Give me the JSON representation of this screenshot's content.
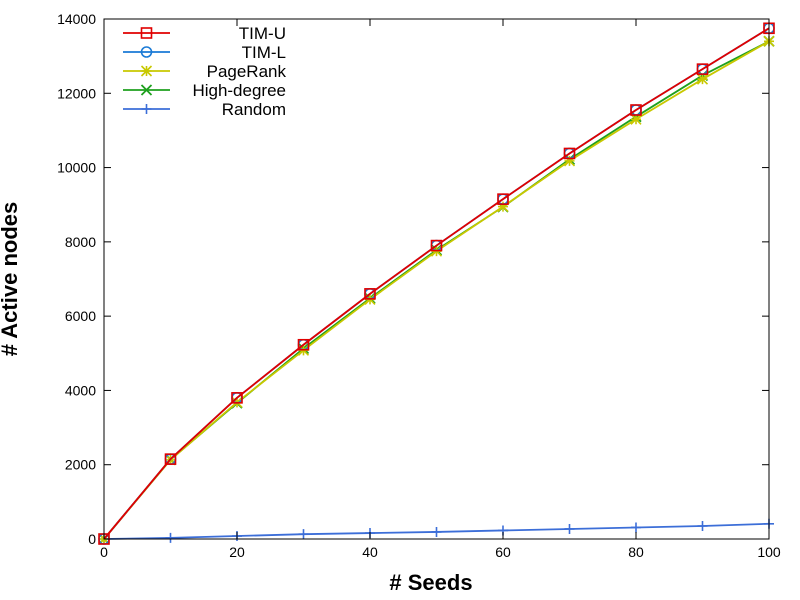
{
  "chart_data": {
    "type": "line",
    "xlabel": "# Seeds",
    "ylabel": "# Active nodes",
    "xlim": [
      0,
      100
    ],
    "ylim": [
      0,
      14000
    ],
    "xticks": [
      0,
      20,
      40,
      60,
      80,
      100
    ],
    "yticks": [
      0,
      2000,
      4000,
      6000,
      8000,
      10000,
      12000,
      14000
    ],
    "grid": false,
    "legend_position": "top-left",
    "x": [
      0,
      10,
      20,
      30,
      40,
      50,
      60,
      70,
      80,
      90,
      100
    ],
    "series": [
      {
        "name": "TIM-U",
        "color": "#e00000",
        "marker": "square",
        "values": [
          0,
          2150,
          3800,
          5230,
          6600,
          7900,
          9150,
          10380,
          11550,
          12650,
          13750
        ]
      },
      {
        "name": "TIM-L",
        "color": "#1a7ad6",
        "marker": "circle",
        "values": [
          0,
          2150,
          3800,
          5230,
          6600,
          7900,
          9150,
          10380,
          11550,
          12650,
          13750
        ]
      },
      {
        "name": "PageRank",
        "color": "#c8c800",
        "marker": "asterisk",
        "values": [
          0,
          2130,
          3680,
          5080,
          6450,
          7750,
          8950,
          10180,
          11300,
          12380,
          13400
        ]
      },
      {
        "name": "High-degree",
        "color": "#1ea01e",
        "marker": "x",
        "values": [
          0,
          2140,
          3660,
          5130,
          6480,
          7780,
          8940,
          10220,
          11370,
          12480,
          13400
        ]
      },
      {
        "name": "Random",
        "color": "#3c6ed8",
        "marker": "plus",
        "values": [
          0,
          30,
          80,
          130,
          160,
          190,
          230,
          270,
          310,
          350,
          410
        ]
      }
    ]
  }
}
